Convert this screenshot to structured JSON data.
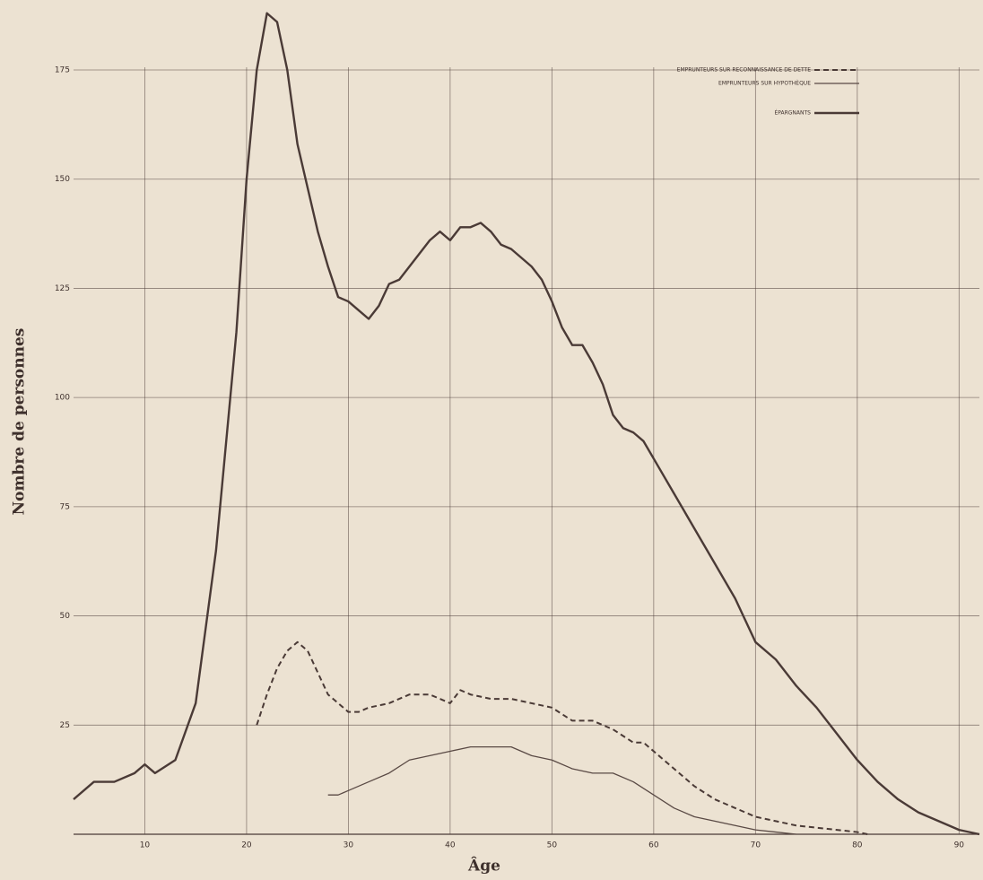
{
  "chart_data": {
    "type": "line",
    "x_label": "Âge",
    "y_label": "Nombre de personnes",
    "xlim": [
      3,
      92
    ],
    "ylim": [
      0,
      190
    ],
    "xticks": [
      10,
      20,
      30,
      40,
      50,
      60,
      70,
      80,
      90
    ],
    "yticks": [
      25,
      50,
      75,
      100,
      125,
      150,
      175
    ],
    "grid": true,
    "legend": "upper right",
    "series": [
      {
        "name": "EMPRUNTEURS SUR RECONNAISSANCE DE DETTE",
        "color": "#4a3a36",
        "style": "dashed",
        "x": [
          21,
          22,
          23,
          24,
          25,
          26,
          27,
          28,
          29,
          30,
          31,
          32,
          34,
          36,
          38,
          40,
          41,
          42,
          44,
          46,
          48,
          50,
          52,
          54,
          56,
          58,
          59,
          60,
          62,
          64,
          66,
          68,
          70,
          72,
          74,
          76,
          78,
          80,
          81
        ],
        "values": [
          25,
          32,
          38,
          42,
          44,
          42,
          37,
          32,
          30,
          28,
          28,
          29,
          30,
          32,
          32,
          30,
          33,
          32,
          31,
          31,
          30,
          29,
          26,
          26,
          24,
          21,
          21,
          19,
          15,
          11,
          8,
          6,
          4,
          3,
          2,
          1.5,
          1,
          0.5,
          0
        ]
      },
      {
        "name": "EMPRUNTEURS SUR HYPOTHÈQUE",
        "color": "#5a4a45",
        "style": "thin",
        "x": [
          28,
          29,
          30,
          32,
          34,
          36,
          38,
          40,
          42,
          44,
          46,
          48,
          50,
          52,
          54,
          56,
          58,
          60,
          62,
          64,
          66,
          68,
          70,
          72,
          74
        ],
        "values": [
          9,
          9,
          10,
          12,
          14,
          17,
          18,
          19,
          20,
          20,
          20,
          18,
          17,
          15,
          14,
          14,
          12,
          9,
          6,
          4,
          3,
          2,
          1,
          0.5,
          0
        ]
      },
      {
        "name": "ÉPARGNANTS",
        "color": "#4a3a36",
        "style": "solid",
        "x": [
          3,
          5,
          7,
          9,
          10,
          11,
          13,
          15,
          17,
          19,
          20,
          21,
          22,
          23,
          24,
          25,
          26,
          27,
          28,
          29,
          30,
          31,
          32,
          33,
          34,
          35,
          36,
          37,
          38,
          39,
          40,
          41,
          42,
          43,
          44,
          45,
          46,
          47,
          48,
          49,
          50,
          51,
          52,
          53,
          54,
          55,
          56,
          57,
          58,
          59,
          60,
          62,
          64,
          66,
          68,
          70,
          72,
          74,
          76,
          78,
          80,
          82,
          84,
          86,
          88,
          90,
          92
        ],
        "values": [
          8,
          12,
          12,
          14,
          16,
          14,
          17,
          30,
          65,
          115,
          150,
          175,
          188,
          186,
          175,
          158,
          148,
          138,
          130,
          123,
          122,
          120,
          118,
          121,
          126,
          127,
          130,
          133,
          136,
          138,
          136,
          139,
          139,
          140,
          138,
          135,
          134,
          132,
          130,
          127,
          122,
          116,
          112,
          112,
          108,
          103,
          96,
          93,
          92,
          90,
          86,
          78,
          70,
          62,
          54,
          44,
          40,
          34,
          29,
          23,
          17,
          12,
          8,
          5,
          3,
          1,
          0
        ]
      }
    ]
  }
}
